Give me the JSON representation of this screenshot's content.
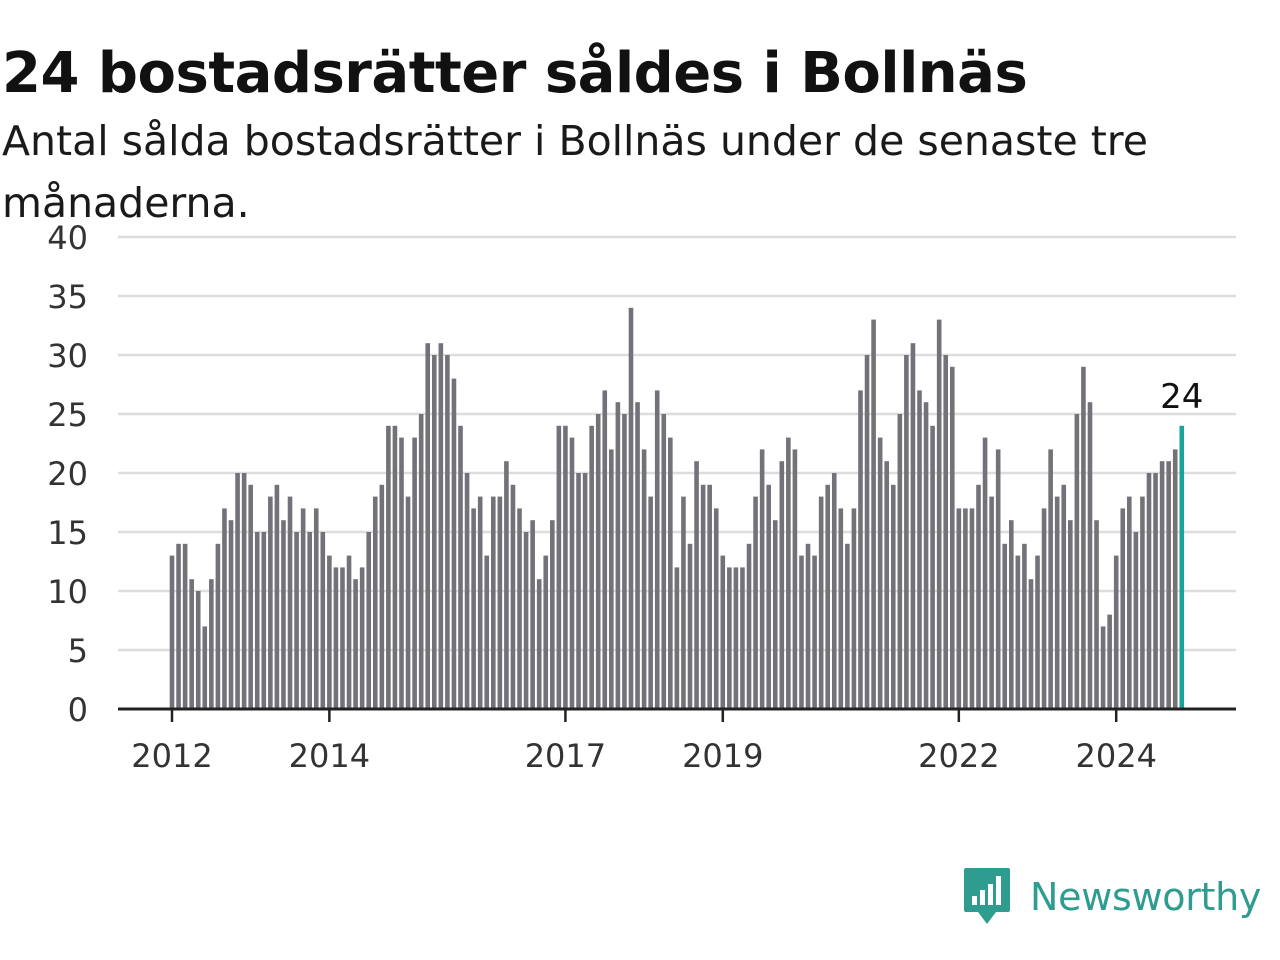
{
  "title": "24 bostadsrätter såldes i Bollnäs",
  "subtitle": "Antal sålda bostadsrätter i Bollnäs under de senaste tre månaderna.",
  "logo": {
    "text": "Newsworthy",
    "icon": "bar-chart-speech-bubble-icon"
  },
  "colors": {
    "bar": "#737278",
    "highlight": "#1aa39a",
    "grid": "#dddddd",
    "axis": "#222222",
    "brand": "#2e9d8f"
  },
  "chart_data": {
    "type": "bar",
    "title": "24 bostadsrätter såldes i Bollnäs",
    "ylim": [
      0,
      40
    ],
    "yticks": [
      0,
      5,
      10,
      15,
      20,
      25,
      30,
      35,
      40
    ],
    "xticks": [
      "2012",
      "2014",
      "2017",
      "2019",
      "2022",
      "2024"
    ],
    "grid": "horizontal",
    "highlight_label": "24",
    "values": [
      13,
      14,
      14,
      11,
      10,
      7,
      11,
      14,
      17,
      16,
      20,
      20,
      19,
      15,
      15,
      18,
      19,
      16,
      18,
      15,
      17,
      15,
      17,
      15,
      13,
      12,
      12,
      13,
      11,
      12,
      15,
      18,
      19,
      24,
      24,
      23,
      18,
      23,
      25,
      31,
      30,
      31,
      30,
      28,
      24,
      20,
      17,
      18,
      13,
      18,
      18,
      21,
      19,
      17,
      15,
      16,
      11,
      13,
      16,
      24,
      24,
      23,
      20,
      20,
      24,
      25,
      27,
      22,
      26,
      25,
      34,
      26,
      22,
      18,
      27,
      25,
      23,
      12,
      18,
      14,
      21,
      19,
      19,
      17,
      13,
      12,
      12,
      12,
      14,
      18,
      22,
      19,
      16,
      21,
      23,
      22,
      13,
      14,
      13,
      18,
      19,
      20,
      17,
      14,
      17,
      27,
      30,
      33,
      23,
      21,
      19,
      25,
      30,
      31,
      27,
      26,
      24,
      33,
      30,
      29,
      17,
      17,
      17,
      19,
      23,
      18,
      22,
      14,
      16,
      13,
      14,
      11,
      13,
      17,
      22,
      18,
      19,
      16,
      25,
      29,
      26,
      16,
      7,
      8,
      13,
      17,
      18,
      15,
      18,
      20,
      20,
      21,
      21,
      22,
      24
    ]
  }
}
